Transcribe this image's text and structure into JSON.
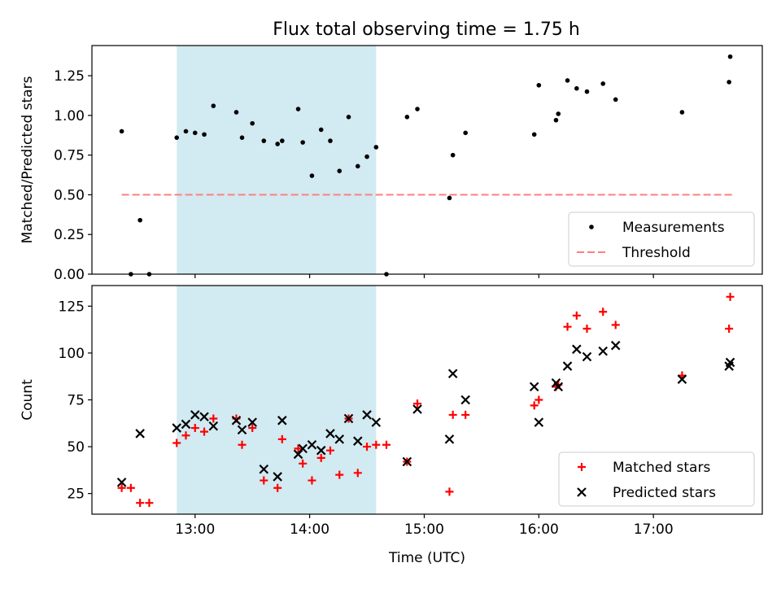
{
  "title": "Flux total observing time = 1.75 h",
  "chart_data": [
    {
      "type": "scatter",
      "panel": "top",
      "title": "Flux total observing time = 1.75 h",
      "xlabel": "",
      "ylabel": "Matched/Predicted stars",
      "xlim": [
        12.1,
        17.95
      ],
      "ylim": [
        0,
        1.44
      ],
      "xticks": [
        13,
        14,
        15,
        16,
        17
      ],
      "xtick_labels": [
        "",
        "",
        "",
        "",
        ""
      ],
      "yticks": [
        0,
        0.25,
        0.5,
        0.75,
        1.0,
        1.25
      ],
      "ytick_labels": [
        "0.00",
        "0.25",
        "0.50",
        "0.75",
        "1.00",
        "1.25"
      ],
      "shaded_region": {
        "x0": 12.84,
        "x1": 14.58,
        "color": "#add8e6"
      },
      "threshold": {
        "value": 0.5,
        "x0": 12.36,
        "x1": 17.71,
        "color": "#ff7f7f"
      },
      "legend": {
        "placement": "lower-right",
        "entries": [
          "Measurements",
          "Threshold"
        ]
      },
      "series": [
        {
          "name": "Measurements",
          "color": "#000000",
          "x": [
            12.36,
            12.44,
            12.52,
            12.6,
            12.84,
            12.92,
            13.0,
            13.08,
            13.16,
            13.36,
            13.41,
            13.5,
            13.6,
            13.72,
            13.76,
            13.9,
            13.94,
            14.02,
            14.1,
            14.18,
            14.26,
            14.34,
            14.42,
            14.5,
            14.58,
            14.67,
            14.85,
            14.94,
            15.22,
            15.25,
            15.36,
            15.96,
            16.0,
            16.15,
            16.17,
            16.25,
            16.33,
            16.42,
            16.56,
            16.67,
            17.25,
            17.66,
            17.67
          ],
          "y": [
            0.9,
            0.0,
            0.34,
            0.0,
            0.86,
            0.9,
            0.89,
            0.88,
            1.06,
            1.02,
            0.86,
            0.95,
            0.84,
            0.82,
            0.84,
            1.04,
            0.83,
            0.62,
            0.91,
            0.84,
            0.65,
            0.99,
            0.68,
            0.74,
            0.8,
            0.0,
            0.99,
            1.04,
            0.48,
            0.75,
            0.89,
            0.88,
            1.19,
            0.97,
            1.01,
            1.22,
            1.17,
            1.15,
            1.2,
            1.1,
            1.02,
            1.21,
            1.37
          ]
        }
      ]
    },
    {
      "type": "scatter",
      "panel": "bottom",
      "xlabel": "Time (UTC)",
      "ylabel": "Count",
      "xlim": [
        12.1,
        17.95
      ],
      "ylim": [
        14,
        136
      ],
      "xticks": [
        13,
        14,
        15,
        16,
        17
      ],
      "xtick_labels": [
        "13:00",
        "14:00",
        "15:00",
        "16:00",
        "17:00"
      ],
      "yticks": [
        25,
        50,
        75,
        100,
        125
      ],
      "ytick_labels": [
        "25",
        "50",
        "75",
        "100",
        "125"
      ],
      "shaded_region": {
        "x0": 12.84,
        "x1": 14.58,
        "color": "#add8e6"
      },
      "legend": {
        "placement": "lower-right",
        "entries": [
          "Matched stars",
          "Predicted stars"
        ]
      },
      "series": [
        {
          "name": "Matched stars",
          "marker": "plus",
          "color": "#ff0000",
          "x": [
            12.36,
            12.44,
            12.52,
            12.6,
            12.84,
            12.92,
            13.0,
            13.08,
            13.16,
            13.36,
            13.41,
            13.5,
            13.6,
            13.72,
            13.76,
            13.9,
            13.94,
            14.02,
            14.1,
            14.18,
            14.26,
            14.34,
            14.42,
            14.5,
            14.58,
            14.67,
            14.85,
            14.94,
            15.22,
            15.25,
            15.36,
            15.96,
            16.0,
            16.15,
            16.17,
            16.25,
            16.33,
            16.42,
            16.56,
            16.67,
            17.25,
            17.66,
            17.67
          ],
          "y": [
            28,
            28,
            20,
            20,
            52,
            56,
            60,
            58,
            65,
            65,
            51,
            60,
            32,
            28,
            54,
            49,
            41,
            32,
            44,
            48,
            35,
            65,
            36,
            50,
            51,
            51,
            42,
            73,
            26,
            67,
            67,
            72,
            75,
            82,
            83,
            114,
            120,
            113,
            122,
            115,
            88,
            113,
            130
          ]
        },
        {
          "name": "Predicted stars",
          "marker": "x",
          "color": "#000000",
          "x": [
            12.36,
            12.52,
            12.84,
            12.92,
            13.0,
            13.08,
            13.16,
            13.36,
            13.41,
            13.5,
            13.6,
            13.72,
            13.76,
            13.9,
            13.94,
            14.02,
            14.1,
            14.18,
            14.26,
            14.34,
            14.42,
            14.5,
            14.58,
            14.85,
            14.94,
            15.22,
            15.25,
            15.36,
            15.96,
            16.0,
            16.15,
            16.17,
            16.25,
            16.33,
            16.42,
            16.56,
            16.67,
            17.25,
            17.66,
            17.67
          ],
          "y": [
            31,
            57,
            60,
            62,
            67,
            66,
            61,
            64,
            59,
            63,
            38,
            34,
            64,
            46,
            49,
            51,
            48,
            57,
            54,
            65,
            53,
            67,
            63,
            42,
            70,
            54,
            89,
            75,
            82,
            63,
            84,
            82,
            93,
            102,
            98,
            101,
            104,
            86,
            93,
            95
          ]
        }
      ]
    }
  ]
}
